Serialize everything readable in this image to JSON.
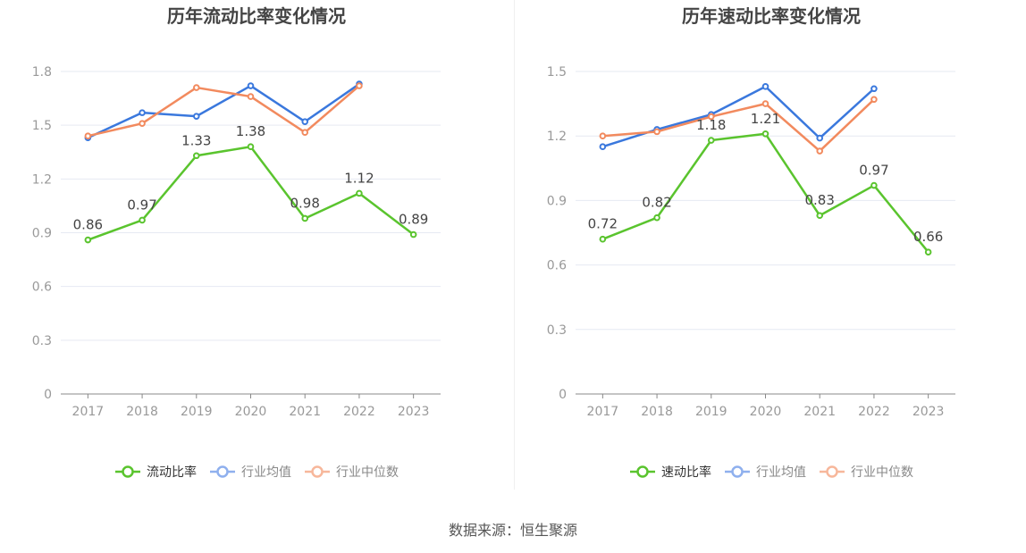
{
  "source": "数据来源：恒生聚源",
  "chart_data": [
    {
      "type": "line",
      "title": "历年流动比率变化情况",
      "categories": [
        "2017",
        "2018",
        "2019",
        "2020",
        "2021",
        "2022",
        "2023"
      ],
      "ylim": [
        0,
        1.8
      ],
      "yticks": [
        "0",
        "0.3",
        "0.6",
        "0.9",
        "1.2",
        "1.5",
        "1.8"
      ],
      "series": [
        {
          "name": "流动比率",
          "color": "#5ac42e",
          "values": [
            0.86,
            0.97,
            1.33,
            1.38,
            0.98,
            1.12,
            0.89
          ],
          "labels": [
            "0.86",
            "0.97",
            "1.33",
            "1.38",
            "0.98",
            "1.12",
            "0.89"
          ],
          "legend_active": true
        },
        {
          "name": "行业均值",
          "color": "#3a78dd",
          "values": [
            1.43,
            1.57,
            1.55,
            1.72,
            1.52,
            1.73,
            null
          ],
          "legend_active": false
        },
        {
          "name": "行业中位数",
          "color": "#f28a5e",
          "values": [
            1.44,
            1.51,
            1.71,
            1.66,
            1.46,
            1.72,
            null
          ],
          "legend_active": false
        }
      ],
      "legend_position": "bottom",
      "grid": true
    },
    {
      "type": "line",
      "title": "历年速动比率变化情况",
      "categories": [
        "2017",
        "2018",
        "2019",
        "2020",
        "2021",
        "2022",
        "2023"
      ],
      "ylim": [
        0,
        1.5
      ],
      "yticks": [
        "0",
        "0.3",
        "0.6",
        "0.9",
        "1.2",
        "1.5"
      ],
      "series": [
        {
          "name": "速动比率",
          "color": "#5ac42e",
          "values": [
            0.72,
            0.82,
            1.18,
            1.21,
            0.83,
            0.97,
            0.66
          ],
          "labels": [
            "0.72",
            "0.82",
            "1.18",
            "1.21",
            "0.83",
            "0.97",
            "0.66"
          ],
          "legend_active": true
        },
        {
          "name": "行业均值",
          "color": "#3a78dd",
          "values": [
            1.15,
            1.23,
            1.3,
            1.43,
            1.19,
            1.42,
            null
          ],
          "legend_active": false
        },
        {
          "name": "行业中位数",
          "color": "#f28a5e",
          "values": [
            1.2,
            1.22,
            1.29,
            1.35,
            1.13,
            1.37,
            null
          ],
          "legend_active": false
        }
      ],
      "legend_position": "bottom",
      "grid": true
    }
  ]
}
